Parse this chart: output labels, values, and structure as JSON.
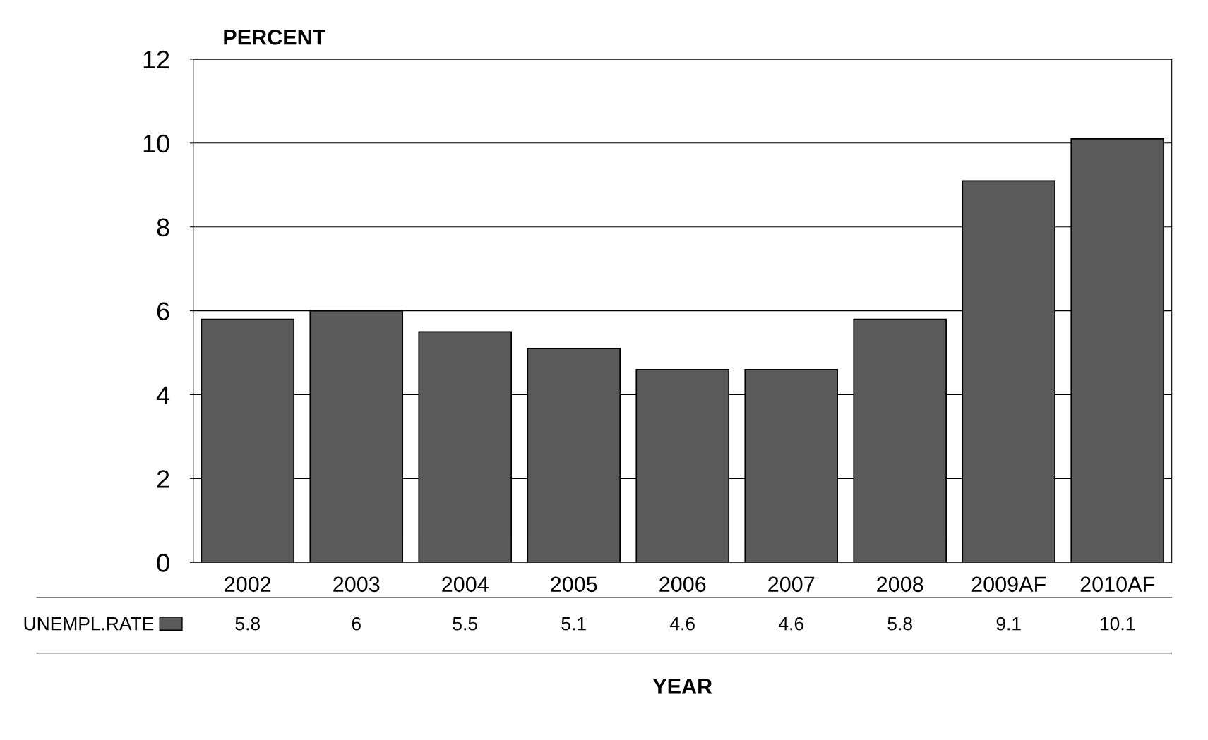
{
  "chart_data": {
    "type": "bar",
    "ylabel": "PERCENT",
    "xlabel": "YEAR",
    "categories": [
      "2002",
      "2003",
      "2004",
      "2005",
      "2006",
      "2007",
      "2008",
      "2009AF",
      "2010AF"
    ],
    "series": [
      {
        "name": "UNEMPL.RATE",
        "color": "#5a5a5a",
        "values": [
          5.8,
          6,
          5.5,
          5.1,
          4.6,
          4.6,
          5.8,
          9.1,
          10.1
        ]
      }
    ],
    "ylim": [
      0,
      12
    ],
    "yticks": [
      0,
      2,
      4,
      6,
      8,
      10,
      12
    ],
    "grid": "y",
    "legend": "bottom left",
    "data_labels": true
  }
}
